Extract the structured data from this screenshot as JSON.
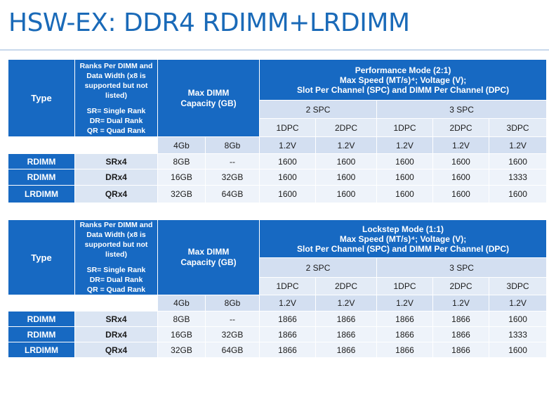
{
  "slide": {
    "title": "HSW-EX: DDR4 RDIMM+LRDIMM"
  },
  "tables": [
    {
      "header": {
        "type": "Type",
        "ranks_lines": [
          "Ranks Per DIMM and",
          "Data Width (x8 is",
          "supported but not",
          "listed)",
          "",
          "SR= Single Rank",
          "DR= Dual Rank",
          "QR = Quad Rank"
        ],
        "max_dimm_lines": [
          "Max DIMM",
          "Capacity (GB)"
        ],
        "mode_lines": [
          "Performance Mode (2:1)",
          "Max Speed (MT/s)⁴; Voltage (V);",
          "Slot Per Channel (SPC) and DIMM Per Channel (DPC)"
        ],
        "spc": [
          "2 SPC",
          "3 SPC"
        ],
        "dpc": [
          "1DPC",
          "2DPC",
          "1DPC",
          "2DPC",
          "3DPC"
        ],
        "density": [
          "4Gb",
          "8Gb"
        ],
        "voltage": [
          "1.2V",
          "1.2V",
          "1.2V",
          "1.2V",
          "1.2V"
        ]
      },
      "rows": [
        {
          "type": "RDIMM",
          "rank": "SRx4",
          "cap": [
            "8GB",
            "--"
          ],
          "speeds": [
            "1600",
            "1600",
            "1600",
            "1600",
            "1600"
          ]
        },
        {
          "type": "RDIMM",
          "rank": "DRx4",
          "cap": [
            "16GB",
            "32GB"
          ],
          "speeds": [
            "1600",
            "1600",
            "1600",
            "1600",
            "1333"
          ]
        },
        {
          "type": "LRDIMM",
          "rank": "QRx4",
          "cap": [
            "32GB",
            "64GB"
          ],
          "speeds": [
            "1600",
            "1600",
            "1600",
            "1600",
            "1600"
          ]
        }
      ]
    },
    {
      "header": {
        "type": "Type",
        "ranks_lines": [
          "Ranks Per DIMM and",
          "Data Width (x8 is",
          "supported but not",
          "listed)",
          "",
          "SR= Single Rank",
          "DR= Dual Rank",
          "QR = Quad Rank"
        ],
        "max_dimm_lines": [
          "Max DIMM",
          "Capacity (GB)"
        ],
        "mode_lines": [
          "Lockstep Mode (1:1)",
          "Max Speed (MT/s)⁴; Voltage (V);",
          "Slot Per Channel (SPC) and DIMM Per Channel (DPC)"
        ],
        "spc": [
          "2 SPC",
          "3 SPC"
        ],
        "dpc": [
          "1DPC",
          "2DPC",
          "1DPC",
          "2DPC",
          "3DPC"
        ],
        "density": [
          "4Gb",
          "8Gb"
        ],
        "voltage": [
          "1.2V",
          "1.2V",
          "1.2V",
          "1.2V",
          "1.2V"
        ]
      },
      "rows": [
        {
          "type": "RDIMM",
          "rank": "SRx4",
          "cap": [
            "8GB",
            "--"
          ],
          "speeds": [
            "1866",
            "1866",
            "1866",
            "1866",
            "1600"
          ]
        },
        {
          "type": "RDIMM",
          "rank": "DRx4",
          "cap": [
            "16GB",
            "32GB"
          ],
          "speeds": [
            "1866",
            "1866",
            "1866",
            "1866",
            "1333"
          ]
        },
        {
          "type": "LRDIMM",
          "rank": "QRx4",
          "cap": [
            "32GB",
            "64GB"
          ],
          "speeds": [
            "1866",
            "1866",
            "1866",
            "1866",
            "1600"
          ]
        }
      ]
    }
  ]
}
